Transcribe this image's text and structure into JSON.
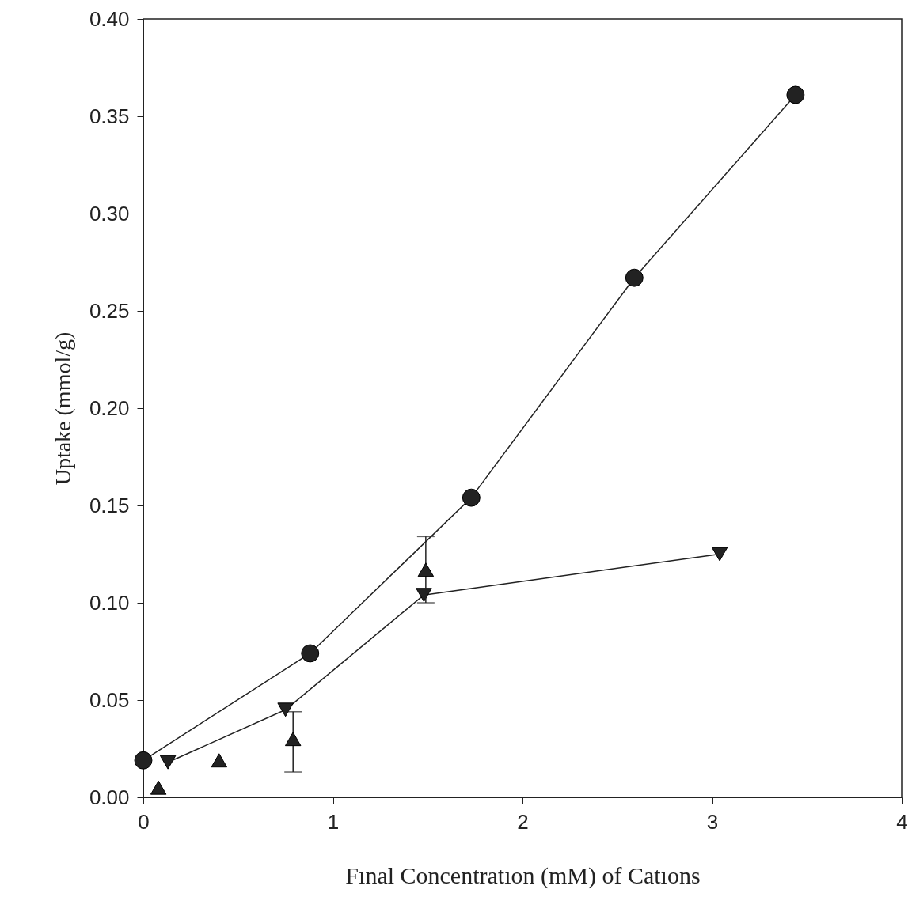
{
  "chart_data": {
    "type": "line",
    "xlabel": "Fınal Concentratıon (mM) of Catıons",
    "ylabel": "Uptake (mmol/g)",
    "xlim": [
      0,
      4
    ],
    "xticks": [
      0,
      1,
      2,
      3,
      4
    ],
    "ylim": [
      0,
      0.4
    ],
    "yticks": [
      {
        "value": 0,
        "label": "0.00"
      },
      {
        "value": 0.05,
        "label": "0.05"
      },
      {
        "value": 0.1,
        "label": "0.10"
      },
      {
        "value": 0.15,
        "label": "0.15"
      },
      {
        "value": 0.2,
        "label": "0.20"
      },
      {
        "value": 0.25,
        "label": "0.25"
      },
      {
        "value": 0.3,
        "label": "0.30"
      },
      {
        "value": 0.35,
        "label": "0.35"
      },
      {
        "value": 0.4,
        "label": "0.40"
      }
    ],
    "grid": false,
    "line_style": "solid",
    "series": [
      {
        "marker": "circle",
        "color": "#222222",
        "x": [
          0,
          0.88,
          1.73,
          2.59,
          3.44
        ],
        "values": [
          0.019,
          0.074,
          0.154,
          0.267,
          0.361
        ]
      },
      {
        "marker": "triangle-down",
        "color": "#222222",
        "x": [
          0.13,
          0.75,
          1.48,
          3.04
        ],
        "values": [
          0.018,
          0.045,
          0.104,
          0.125
        ]
      },
      {
        "type": "scatter",
        "marker": "triangle",
        "color": "#222222",
        "x": [
          0.08,
          0.4,
          0.79,
          1.49
        ],
        "values": [
          0.005,
          0.019,
          0.03,
          0.117
        ],
        "errors": [
          null,
          null,
          [
            0.013,
            0.044
          ],
          [
            0.1,
            0.134
          ]
        ]
      }
    ]
  }
}
